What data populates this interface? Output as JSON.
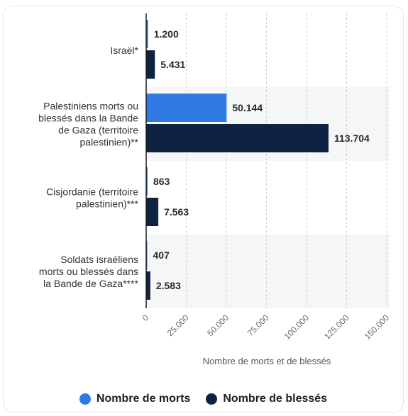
{
  "chart_data": {
    "type": "bar",
    "orientation": "horizontal",
    "categories": [
      [
        "Israël*"
      ],
      [
        "Palestiniens morts ou",
        "blessés dans la Bande",
        "de Gaza (territoire",
        "palestinien)**"
      ],
      [
        "Cisjordanie (territoire",
        "palestinien)***"
      ],
      [
        "Soldats israéliens",
        "morts ou blessés dans",
        "la Bande de Gaza****"
      ]
    ],
    "series": [
      {
        "name": "Nombre de morts",
        "color": "#2f7ae5",
        "values": [
          1200,
          50144,
          863,
          407
        ],
        "labels": [
          "1.200",
          "50.144",
          "863",
          "407"
        ]
      },
      {
        "name": "Nombre de blessés",
        "color": "#0d2341",
        "values": [
          5431,
          113704,
          7563,
          2583
        ],
        "labels": [
          "5.431",
          "113.704",
          "7.563",
          "2.583"
        ]
      }
    ],
    "xlabel": "Nombre de morts et de blessés",
    "ylabel": "",
    "xlim": [
      0,
      150000
    ],
    "xticks": [
      0,
      25000,
      50000,
      75000,
      100000,
      125000,
      150000
    ],
    "xtick_labels": [
      "0",
      "25.000",
      "50.000",
      "75.000",
      "100.000",
      "125.000",
      "150.000"
    ],
    "grid": true,
    "legend_position": "bottom"
  }
}
